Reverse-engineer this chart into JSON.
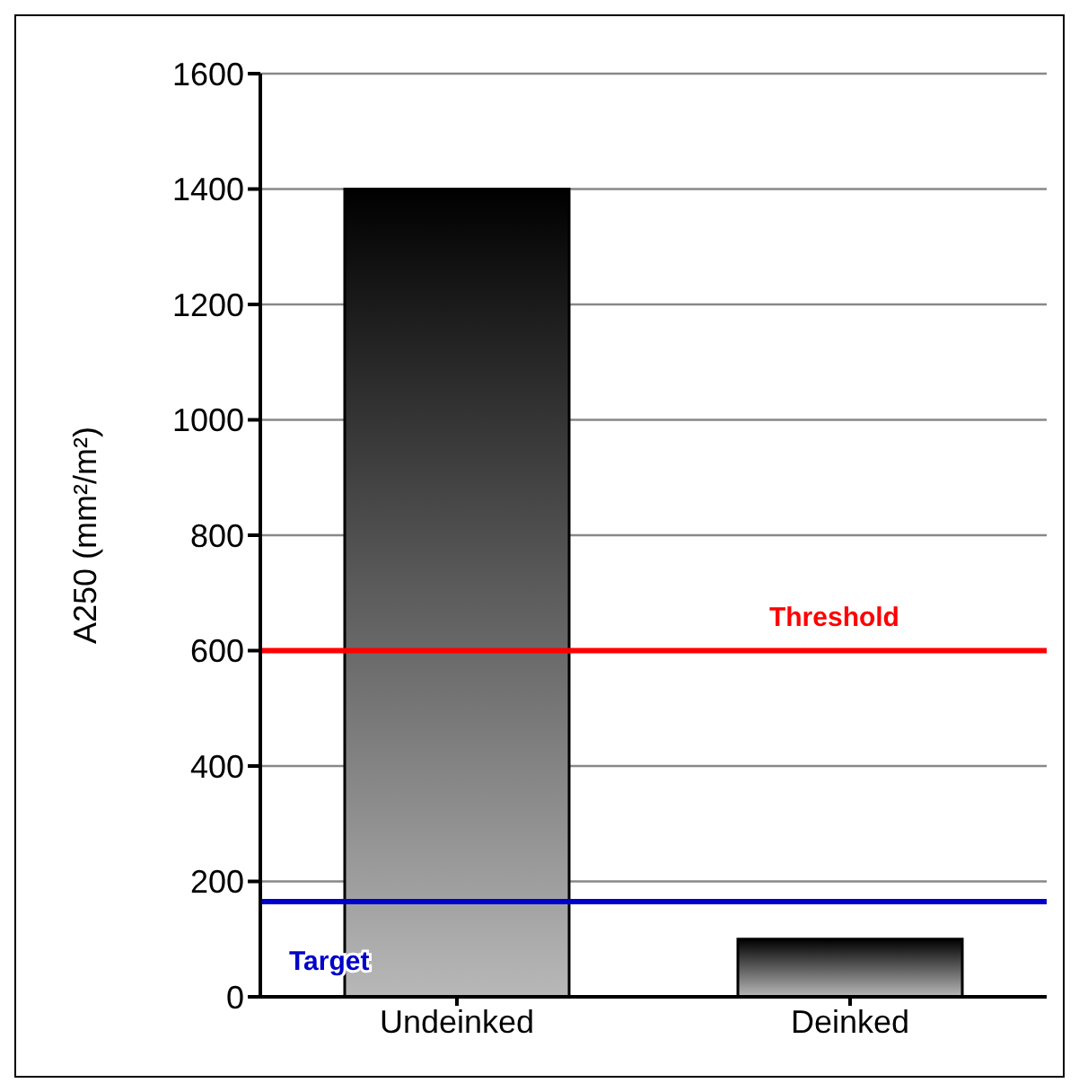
{
  "chart_data": {
    "type": "bar",
    "ylabel": "A250 (mm²/m²)",
    "categories": [
      "Undeinked",
      "Deinked"
    ],
    "values": [
      1400,
      100
    ],
    "color": "#000000",
    "ylim": [
      0,
      1600
    ],
    "yticks": [
      0,
      200,
      400,
      600,
      800,
      1000,
      1200,
      1400,
      1600
    ],
    "grid": "y",
    "ref_lines": [
      {
        "axis": "y",
        "value": 600,
        "label": "Threshold",
        "color": "#ff0000"
      },
      {
        "axis": "y",
        "value": 165,
        "label": "Target",
        "color": "#0000cc"
      }
    ]
  }
}
